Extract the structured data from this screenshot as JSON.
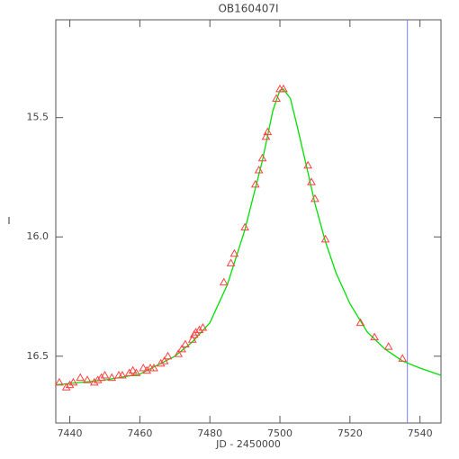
{
  "chart_data": {
    "type": "line",
    "title": "OB160407I",
    "x_label": "JD - 2450000",
    "y_label": "I",
    "xlim": [
      7436,
      7546
    ],
    "xticks": [
      7440,
      7460,
      7480,
      7500,
      7520,
      7540
    ],
    "ylim": [
      16.78,
      15.09
    ],
    "yticks": [
      15.5,
      {
        "value": 16,
        "label": "16.0"
      },
      16.5
    ],
    "series": [
      {
        "color": "#00e000",
        "marker": "none",
        "x": [
          7436,
          7450,
          7460,
          7470,
          7475,
          7480,
          7485,
          7490,
          7495,
          7498,
          7500,
          7501,
          7503,
          7505,
          7508,
          7510,
          7513,
          7516,
          7520,
          7525,
          7530,
          7535,
          7540,
          7546
        ],
        "values": [
          16.62,
          16.6,
          16.575,
          16.5,
          16.44,
          16.36,
          16.2,
          15.97,
          15.68,
          15.47,
          15.385,
          15.38,
          15.42,
          15.54,
          15.73,
          15.86,
          16.02,
          16.15,
          16.28,
          16.4,
          16.47,
          16.52,
          16.55,
          16.58
        ]
      },
      {
        "color": "#ff4040",
        "marker": "triangle",
        "x": [
          7437,
          7439,
          7440,
          7441,
          7443,
          7445,
          7447,
          7448,
          7449,
          7450,
          7452,
          7454,
          7455,
          7457,
          7458,
          7459,
          7461,
          7462,
          7463,
          7464,
          7466,
          7467,
          7468,
          7471,
          7472,
          7473,
          7475,
          7475.5,
          7476,
          7477,
          7478,
          7484,
          7486,
          7487,
          7490,
          7493,
          7494,
          7495,
          7496,
          7496.5,
          7499,
          7500,
          7501,
          7508,
          7509,
          7510,
          7513,
          7523,
          7527,
          7531,
          7535
        ],
        "values": [
          16.61,
          16.63,
          16.62,
          16.61,
          16.59,
          16.6,
          16.61,
          16.6,
          16.59,
          16.58,
          16.59,
          16.58,
          16.58,
          16.57,
          16.56,
          16.57,
          16.55,
          16.56,
          16.55,
          16.55,
          16.53,
          16.52,
          16.5,
          16.49,
          16.47,
          16.45,
          16.43,
          16.41,
          16.4,
          16.39,
          16.38,
          16.19,
          16.11,
          16.07,
          15.96,
          15.78,
          15.72,
          15.67,
          15.58,
          15.56,
          15.42,
          15.38,
          15.38,
          15.7,
          15.77,
          15.84,
          16.01,
          16.36,
          16.42,
          16.46,
          16.51
        ]
      }
    ],
    "vlines": [
      {
        "value": 7536.4,
        "color": "#8080ff"
      }
    ]
  }
}
